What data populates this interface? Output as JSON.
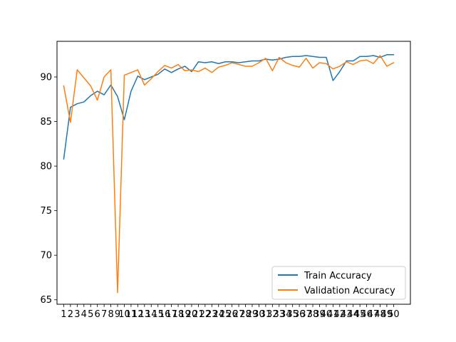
{
  "chart_data": {
    "type": "line",
    "title": "",
    "xlabel": "",
    "ylabel": "",
    "x": [
      1,
      2,
      3,
      4,
      5,
      6,
      7,
      8,
      9,
      10,
      11,
      12,
      13,
      14,
      15,
      16,
      17,
      18,
      19,
      20,
      21,
      22,
      23,
      24,
      25,
      26,
      27,
      28,
      29,
      30,
      31,
      32,
      33,
      34,
      35,
      36,
      37,
      38,
      39,
      40,
      41,
      42,
      43,
      44,
      45,
      46,
      47,
      48,
      49,
      50
    ],
    "xlim": [
      0,
      52.5
    ],
    "ylim": [
      64.5,
      94.0
    ],
    "yticks": [
      65,
      70,
      75,
      80,
      85,
      90
    ],
    "grid": false,
    "legend_position": "lower-right",
    "series": [
      {
        "name": "Train Accuracy",
        "color": "#1f77b4",
        "values": [
          80.8,
          86.6,
          87.0,
          87.2,
          87.9,
          88.4,
          88.0,
          89.1,
          87.8,
          85.2,
          88.4,
          90.1,
          89.7,
          90.0,
          90.3,
          90.9,
          90.5,
          90.9,
          91.2,
          90.6,
          91.7,
          91.6,
          91.7,
          91.5,
          91.7,
          91.7,
          91.6,
          91.7,
          91.8,
          91.8,
          92.0,
          91.9,
          92.0,
          92.2,
          92.3,
          92.3,
          92.4,
          92.3,
          92.2,
          92.2,
          89.6,
          90.6,
          91.8,
          91.8,
          92.3,
          92.3,
          92.4,
          92.2,
          92.5,
          92.5
        ]
      },
      {
        "name": "Validation Accuracy",
        "color": "#ff7f0e",
        "values": [
          89.0,
          84.9,
          90.8,
          89.9,
          89.0,
          87.4,
          90.0,
          90.8,
          65.8,
          90.2,
          90.5,
          90.8,
          89.1,
          89.8,
          90.6,
          91.3,
          91.0,
          91.4,
          90.7,
          90.8,
          90.6,
          91.0,
          90.5,
          91.1,
          91.3,
          91.6,
          91.4,
          91.2,
          91.2,
          91.6,
          92.1,
          90.7,
          92.2,
          91.6,
          91.3,
          91.1,
          92.1,
          91.0,
          91.6,
          91.5,
          90.9,
          91.2,
          91.7,
          91.4,
          91.8,
          91.9,
          91.5,
          92.4,
          91.2,
          91.6
        ]
      }
    ]
  }
}
